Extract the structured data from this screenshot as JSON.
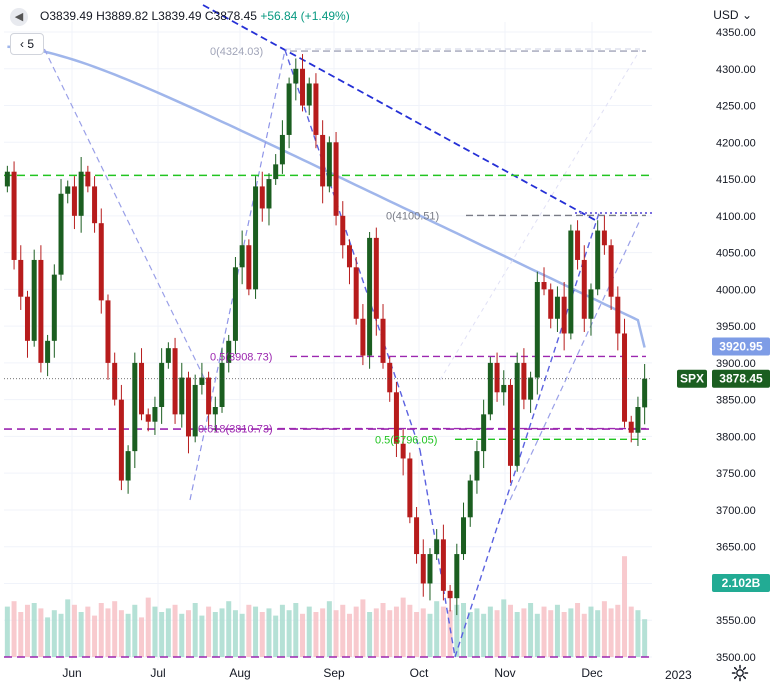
{
  "legend": {
    "open_label": "O",
    "open": "3839.49",
    "high_label": "H",
    "high": "3889.82",
    "low_label": "L",
    "low": "3839.49",
    "close_label": "C",
    "close": "3878.45",
    "change": "+56.84 (+1.49%)"
  },
  "interval": "5",
  "currency": "USD",
  "year_label": "2023",
  "chart_data": {
    "type": "candlestick",
    "symbol": "SPX",
    "currency": "USD",
    "y_range": [
      3500,
      4350
    ],
    "y_ticks": [
      3500,
      3550,
      3600,
      3650,
      3700,
      3750,
      3800,
      3850,
      3900,
      3950,
      4000,
      4050,
      4100,
      4150,
      4200,
      4250,
      4300,
      4350
    ],
    "x_ticks": [
      "Jun",
      "Jul",
      "Aug",
      "Sep",
      "Oct",
      "Nov",
      "Dec"
    ],
    "closes": [
      4160,
      4040,
      3990,
      3930,
      4040,
      3900,
      3930,
      4020,
      4130,
      4140,
      4100,
      4160,
      4140,
      4090,
      3985,
      3900,
      3850,
      3740,
      3780,
      3900,
      3830,
      3820,
      3840,
      3900,
      3920,
      3830,
      3880,
      3800,
      3870,
      3880,
      3830,
      3840,
      3900,
      3930,
      4030,
      4060,
      4000,
      4140,
      4110,
      4150,
      4170,
      4210,
      4280,
      4300,
      4250,
      4280,
      4210,
      4140,
      4200,
      4100,
      4060,
      4030,
      3960,
      3910,
      4070,
      3960,
      3900,
      3860,
      3790,
      3770,
      3690,
      3640,
      3600,
      3640,
      3660,
      3590,
      3580,
      3640,
      3690,
      3740,
      3780,
      3830,
      3900,
      3860,
      3870,
      3760,
      3900,
      3850,
      3880,
      4010,
      4000,
      3960,
      3990,
      3940,
      4080,
      4040,
      3960,
      4000,
      4080,
      4060,
      3990,
      3940,
      3820,
      3805,
      3840,
      3878.45
    ],
    "volumes": [
      2.8,
      3.1,
      2.5,
      2.9,
      3.0,
      2.7,
      2.2,
      2.6,
      2.4,
      3.2,
      2.9,
      2.5,
      2.8,
      2.3,
      3.0,
      2.7,
      3.1,
      2.6,
      2.4,
      2.9,
      2.2,
      3.3,
      2.8,
      2.5,
      2.7,
      2.9,
      2.4,
      2.6,
      3.0,
      2.3,
      2.8,
      2.5,
      2.7,
      3.1,
      2.6,
      2.4,
      2.9,
      2.8,
      2.5,
      2.7,
      2.3,
      2.9,
      2.6,
      3.0,
      2.4,
      2.8,
      2.5,
      2.7,
      3.1,
      2.6,
      2.9,
      2.4,
      2.8,
      3.2,
      2.5,
      2.7,
      3.0,
      2.6,
      2.8,
      3.3,
      2.9,
      2.5,
      2.7,
      2.4,
      3.1,
      2.8,
      2.6,
      2.9,
      3.0,
      2.5,
      2.7,
      2.4,
      2.8,
      2.6,
      3.2,
      2.9,
      2.5,
      2.7,
      3.0,
      2.4,
      2.8,
      2.6,
      2.9,
      2.5,
      2.7,
      3.0,
      2.4,
      2.8,
      2.6,
      3.1,
      2.7,
      2.9,
      5.6,
      2.8,
      2.6,
      2.1
    ],
    "levels": [
      {
        "label": "0(4324.03)",
        "price": 4324.03
      },
      {
        "label": "0(4100.51)",
        "price": 4100.51
      },
      {
        "label": "0.5(3908.73)",
        "price": 3908.73
      },
      {
        "label": "0.618(3810.73)",
        "price": 3810.73
      },
      {
        "label": "0.5(3796.05)",
        "price": 3796.05
      }
    ],
    "horizontal_lines": [
      4155,
      3810,
      3500
    ],
    "moving_average_price": 3920.95,
    "moving_average_label": "3920.95",
    "last_price": 3878.45,
    "last_price_label": "3878.45",
    "volume_label": "2.102B"
  },
  "colors": {
    "up": "#089981",
    "down": "#f23645",
    "up_candle": "#1b5e20",
    "down_candle": "#b71c1c",
    "ma": "#8fa9e8",
    "fib_purple": "#9c27b0",
    "green_line": "#21c421",
    "blue_line": "#2530d6"
  }
}
